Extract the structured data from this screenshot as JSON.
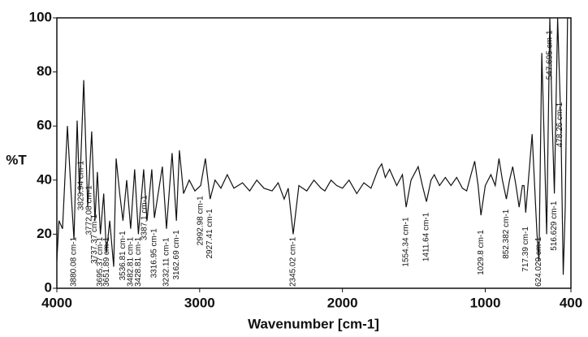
{
  "chart_data": {
    "type": "line",
    "x_label": "Wavenumber [cm-1]",
    "y_label": "%T",
    "color": "#111111",
    "xlim": [
      4000,
      400
    ],
    "ylim": [
      0,
      100
    ],
    "xticks": [
      4000,
      3000,
      2000,
      1000,
      400
    ],
    "yticks": [
      0,
      20,
      40,
      60,
      80,
      100
    ],
    "x": [
      4000,
      3985,
      3960,
      3926,
      3900,
      3880,
      3858,
      3841,
      3812,
      3784,
      3756,
      3733,
      3716,
      3695,
      3672,
      3653,
      3630,
      3602,
      3585,
      3560,
      3537,
      3511,
      3483,
      3455,
      3429,
      3392,
      3369,
      3335,
      3317,
      3261,
      3232,
      3193,
      3163,
      3142,
      3113,
      3073,
      3033,
      2993,
      2960,
      2927,
      2892,
      2851,
      2807,
      2760,
      2700,
      2650,
      2600,
      2550,
      2493,
      2450,
      2408,
      2380,
      2345,
      2305,
      2250,
      2200,
      2150,
      2123,
      2080,
      2040,
      2000,
      1954,
      1900,
      1850,
      1800,
      1750,
      1725,
      1700,
      1670,
      1620,
      1580,
      1554,
      1520,
      1470,
      1440,
      1412,
      1380,
      1357,
      1320,
      1280,
      1240,
      1200,
      1160,
      1130,
      1100,
      1074,
      1050,
      1030,
      1000,
      961,
      930,
      904,
      880,
      852,
      830,
      808,
      785,
      763,
      740,
      729,
      717,
      690,
      672,
      638,
      624,
      604,
      585,
      570,
      548,
      530,
      516,
      493,
      470,
      454,
      440,
      424,
      400
    ],
    "values": [
      10,
      25,
      22,
      60,
      35,
      18,
      62,
      35,
      77,
      30,
      58,
      25,
      43,
      20,
      35,
      13,
      25,
      8,
      48,
      35,
      25,
      40,
      22,
      44,
      20,
      44,
      25,
      44,
      26,
      45,
      22,
      50,
      25,
      51,
      35,
      40,
      36,
      38,
      48,
      33,
      40,
      37,
      42,
      37,
      39,
      36,
      40,
      37,
      36,
      39,
      33,
      37,
      20,
      38,
      36,
      40,
      37,
      36,
      40,
      38,
      37,
      40,
      35,
      39,
      37,
      44,
      46,
      41,
      44,
      38,
      42,
      30,
      40,
      45,
      38,
      32,
      40,
      42,
      38,
      41,
      38,
      41,
      37,
      36,
      42,
      47,
      38,
      27,
      38,
      42,
      38,
      48,
      40,
      33,
      40,
      45,
      38,
      30,
      38,
      38,
      28,
      45,
      57,
      20,
      10,
      87,
      50,
      20,
      100,
      60,
      35,
      100,
      60,
      5,
      30,
      100,
      100
    ],
    "peaks": [
      {
        "x": 3880.08,
        "label": "3880.08 cm-1"
      },
      {
        "x": 3829.94,
        "label": "3829.94 cm-1"
      },
      {
        "x": 3772.08,
        "label": "3772.08 cm-1"
      },
      {
        "x": 3737.37,
        "label": "3737.37 cm-1"
      },
      {
        "x": 3695.37,
        "label": "3695.37 cm-1"
      },
      {
        "x": 3651.89,
        "label": "3651.89 cm-1"
      },
      {
        "x": 3536.81,
        "label": "3536.81 cm-1"
      },
      {
        "x": 3482.81,
        "label": "3482.81 cm-1"
      },
      {
        "x": 3428.81,
        "label": "3428.81 cm-1"
      },
      {
        "x": 3387.1,
        "label": "3387.1 cm-1"
      },
      {
        "x": 3316.95,
        "label": "3316.95 cm-1"
      },
      {
        "x": 3232.11,
        "label": "3232.11 cm-1"
      },
      {
        "x": 3162.69,
        "label": "3162.69 cm-1"
      },
      {
        "x": 2992.98,
        "label": "2992.98 cm-1"
      },
      {
        "x": 2927.41,
        "label": "2927.41 cm-1"
      },
      {
        "x": 2345.02,
        "label": "2345.02 cm-1"
      },
      {
        "x": 1554.34,
        "label": "1554.34 cm-1"
      },
      {
        "x": 1411.64,
        "label": "1411.64 cm-1"
      },
      {
        "x": 1029.8,
        "label": "1029.8 cm-1"
      },
      {
        "x": 852.382,
        "label": "852.382 cm-1"
      },
      {
        "x": 717.39,
        "label": "717.39 cm-1"
      },
      {
        "x": 624.029,
        "label": "624.029 cm-1"
      },
      {
        "x": 547.695,
        "label": "547.695 cm-1"
      },
      {
        "x": 516.629,
        "label": "516.629 cm-1"
      },
      {
        "x": 478.26,
        "label": "478.26 cm-1"
      }
    ]
  }
}
